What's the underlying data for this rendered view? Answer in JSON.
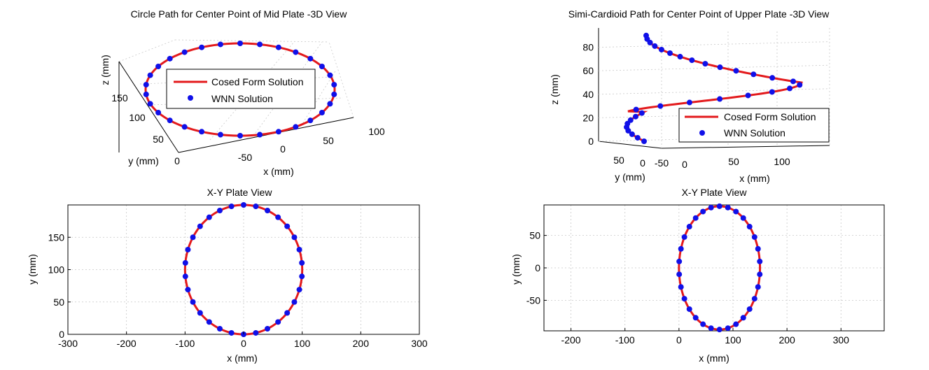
{
  "colors": {
    "closed_form": "#e31a1c",
    "wnn": "#1010e8",
    "grid": "#c8c8c8"
  },
  "chart_data": [
    {
      "id": "circle3d",
      "type": "line",
      "view": "3d",
      "title": "Circle Path for Center Point of Mid Plate -3D View",
      "xlabel": "x (mm)",
      "ylabel": "y (mm)",
      "zlabel": "z (mm)",
      "xticks": [
        "-50",
        "0",
        "50",
        "100"
      ],
      "yticks": [
        "0",
        "50",
        "100",
        "150"
      ],
      "zticks": [],
      "legend": {
        "placement": "center",
        "entries": [
          "Cosed Form Solution",
          "WNN Solution"
        ]
      },
      "grid": true,
      "curve": {
        "shape": "circle",
        "center_x": 0,
        "center_y": 100,
        "radius": 100
      },
      "points_deg": [
        0,
        12,
        24,
        36,
        48,
        60,
        72,
        84,
        96,
        108,
        120,
        132,
        144,
        156,
        168,
        180,
        192,
        204,
        216,
        228,
        240,
        252,
        264,
        276,
        288,
        300,
        312,
        324,
        336,
        348
      ]
    },
    {
      "id": "cardioid3d",
      "type": "line",
      "view": "3d",
      "title": "Simi-Cardioid Path for Center Point of Upper Plate -3D View",
      "xlabel": "x (mm)",
      "ylabel": "y (mm)",
      "zlabel": "z (mm)",
      "xticks": [
        "0",
        "50",
        "100"
      ],
      "yticks": [
        "50",
        "0",
        "-50"
      ],
      "zticks": [
        "0",
        "20",
        "40",
        "60",
        "80"
      ],
      "zlim": [
        0,
        90
      ],
      "legend": {
        "placement": "bottom-right",
        "entries": [
          "Cosed Form Solution",
          "WNN Solution"
        ]
      },
      "grid": true,
      "curve": {
        "shape": "ellipse",
        "center_x": 75,
        "center_y": 0,
        "radius_x": 75,
        "radius_y": 95
      }
    },
    {
      "id": "circle_xy",
      "type": "line",
      "title": "X-Y Plate View",
      "xlabel": "x (mm)",
      "ylabel": "y (mm)",
      "xlim": [
        -300,
        300
      ],
      "ylim": [
        0,
        200
      ],
      "xticks": [
        -300,
        -200,
        -100,
        0,
        100,
        200,
        300
      ],
      "yticks": [
        0,
        50,
        100,
        150
      ],
      "grid": true,
      "curve": {
        "shape": "circle",
        "center_x": 0,
        "center_y": 100,
        "radius": 100
      },
      "points_deg": [
        0,
        12,
        24,
        36,
        48,
        60,
        72,
        84,
        96,
        108,
        120,
        132,
        144,
        156,
        168,
        180,
        192,
        204,
        216,
        228,
        240,
        252,
        264,
        276,
        288,
        300,
        312,
        324,
        336,
        348
      ]
    },
    {
      "id": "cardioid_xy",
      "type": "line",
      "title": "X-Y Plate View",
      "xlabel": "x (mm)",
      "ylabel": "y (mm)",
      "xlim": [
        -250,
        380
      ],
      "ylim": [
        -97,
        97
      ],
      "xticks": [
        -200,
        -100,
        0,
        100,
        200,
        300
      ],
      "yticks": [
        -50,
        0,
        50
      ],
      "grid": true,
      "curve": {
        "shape": "ellipse",
        "center_x": 75,
        "center_y": 0,
        "radius_x": 75,
        "radius_y": 95
      },
      "points_deg": [
        0,
        12,
        24,
        36,
        48,
        60,
        72,
        84,
        96,
        108,
        120,
        132,
        144,
        156,
        168,
        180,
        192,
        204,
        216,
        228,
        240,
        252,
        264,
        276,
        288,
        300,
        312,
        324,
        336,
        348
      ]
    }
  ]
}
